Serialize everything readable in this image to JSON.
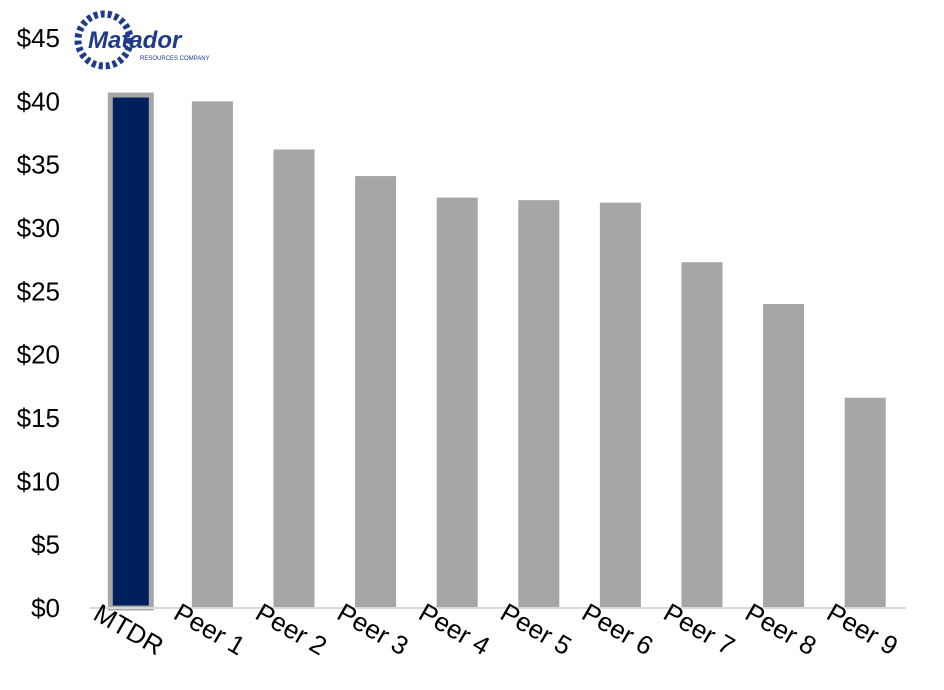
{
  "chart_data": {
    "type": "bar",
    "categories": [
      "MTDR",
      "Peer 1",
      "Peer 2",
      "Peer 3",
      "Peer 4",
      "Peer 5",
      "Peer 6",
      "Peer 7",
      "Peer 8",
      "Peer 9"
    ],
    "values": [
      40.5,
      40.0,
      36.2,
      34.1,
      32.4,
      32.2,
      32.0,
      27.3,
      24.0,
      16.6
    ],
    "ylim": [
      0,
      45
    ],
    "yticks": [
      0,
      5,
      10,
      15,
      20,
      25,
      30,
      35,
      40,
      45
    ],
    "ytick_labels": [
      "$0",
      "$5",
      "$10",
      "$15",
      "$20",
      "$25",
      "$30",
      "$35",
      "$40",
      "$45"
    ],
    "highlight_index": 0,
    "colors": {
      "highlight_fill": "#00205b",
      "highlight_border": "#a6a6a6",
      "bar": "#a6a6a6",
      "axis": "#d9d9d9",
      "text": "#000000"
    },
    "grid": false,
    "title": "",
    "xlabel": "",
    "ylabel": ""
  },
  "logo": {
    "name": "Matador",
    "tagline": "RESOURCES COMPANY",
    "icon": "matador-gear-logo",
    "color": "#1f3a8a"
  }
}
